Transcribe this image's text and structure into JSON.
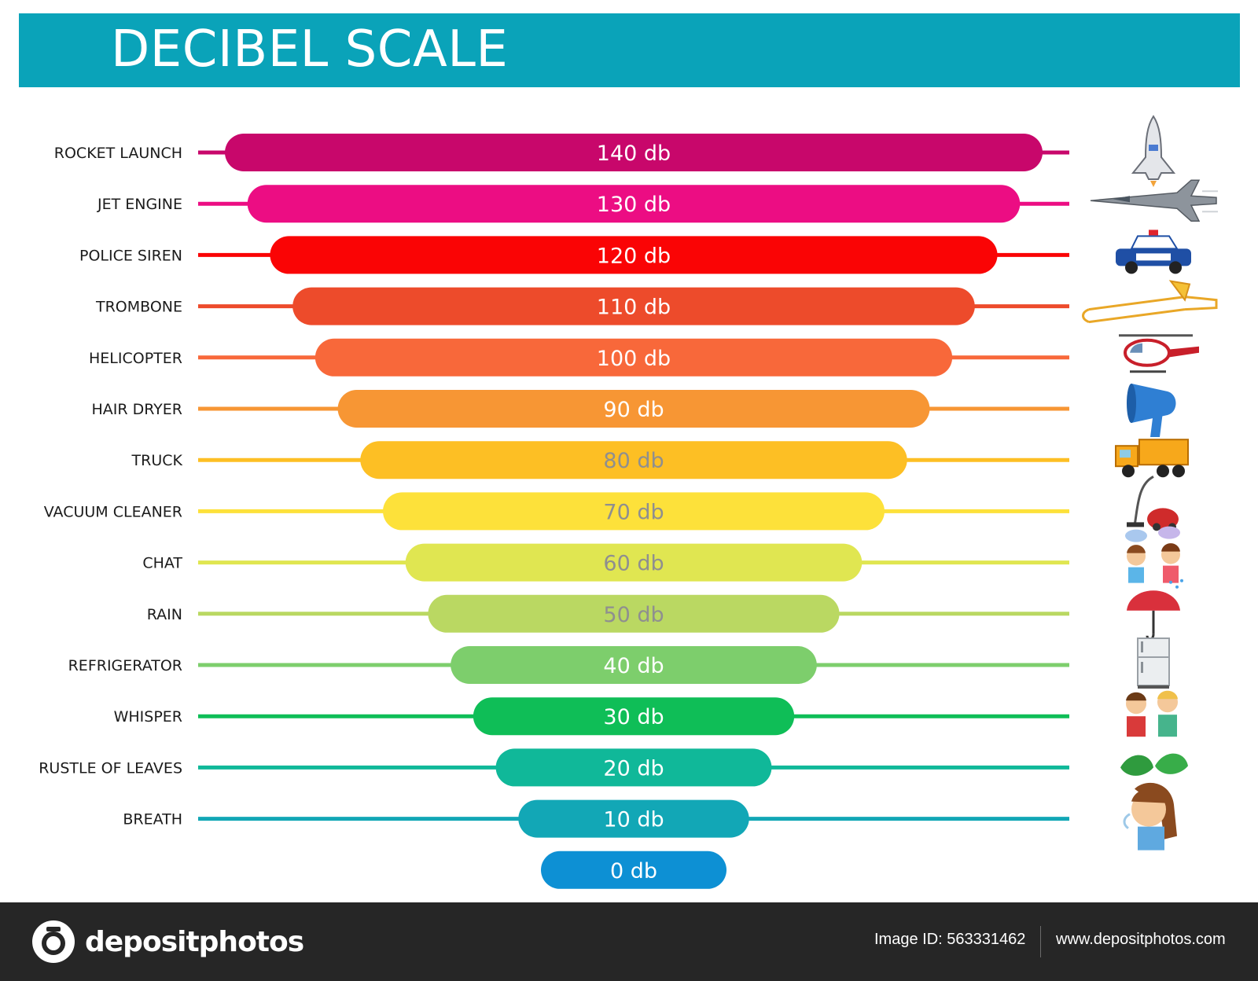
{
  "header": {
    "title": "DECIBEL SCALE",
    "color": "#0aa3b9"
  },
  "chart_data": {
    "type": "bar",
    "unit": "db",
    "categories": [
      "ROCKET LAUNCH",
      "JET ENGINE",
      "POLICE SIREN",
      "TROMBONE",
      "HELICOPTER",
      "HAIR DRYER",
      "TRUCK",
      "VACUUM CLEANER",
      "CHAT",
      "RAIN",
      "REFRIGERATOR",
      "WHISPER",
      "RUSTLE OF LEAVES",
      "BREATH",
      ""
    ],
    "values": [
      140,
      130,
      120,
      110,
      100,
      90,
      80,
      70,
      60,
      50,
      40,
      30,
      20,
      10,
      0
    ],
    "value_labels": [
      "140 db",
      "130 db",
      "120 db",
      "110 db",
      "100 db",
      "90 db",
      "80 db",
      "70 db",
      "60 db",
      "50 db",
      "40 db",
      "30 db",
      "20 db",
      "10 db",
      "0 db"
    ],
    "colors": [
      "#c8076b",
      "#ec0d83",
      "#fa0405",
      "#ed4b2b",
      "#f8683a",
      "#f79634",
      "#fdbf24",
      "#fde13a",
      "#e0e651",
      "#bad862",
      "#7dce6c",
      "#0fbe57",
      "#10b899",
      "#12a7b6",
      "#0d90d4"
    ],
    "value_label_colors": [
      "#ffffff",
      "#ffffff",
      "#ffffff",
      "#ffffff",
      "#ffffff",
      "#ffffff",
      "#8f8f8f",
      "#8f8f8f",
      "#8f8f8f",
      "#8f8f8f",
      "#ffffff",
      "#ffffff",
      "#ffffff",
      "#ffffff",
      "#ffffff"
    ],
    "icons": [
      "space-shuttle-icon",
      "fighter-jet-icon",
      "police-car-icon",
      "trombone-icon",
      "helicopter-icon",
      "hair-dryer-icon",
      "dump-truck-icon",
      "vacuum-cleaner-icon",
      "chatting-kids-icon",
      "umbrella-rain-icon",
      "refrigerator-icon",
      "whispering-kids-icon",
      "leaves-icon",
      "breathing-girl-icon",
      ""
    ],
    "grid": false
  },
  "footer": {
    "logo_text": "depositphotos",
    "image_id": "Image ID: 563331462",
    "website": "www.depositphotos.com"
  }
}
